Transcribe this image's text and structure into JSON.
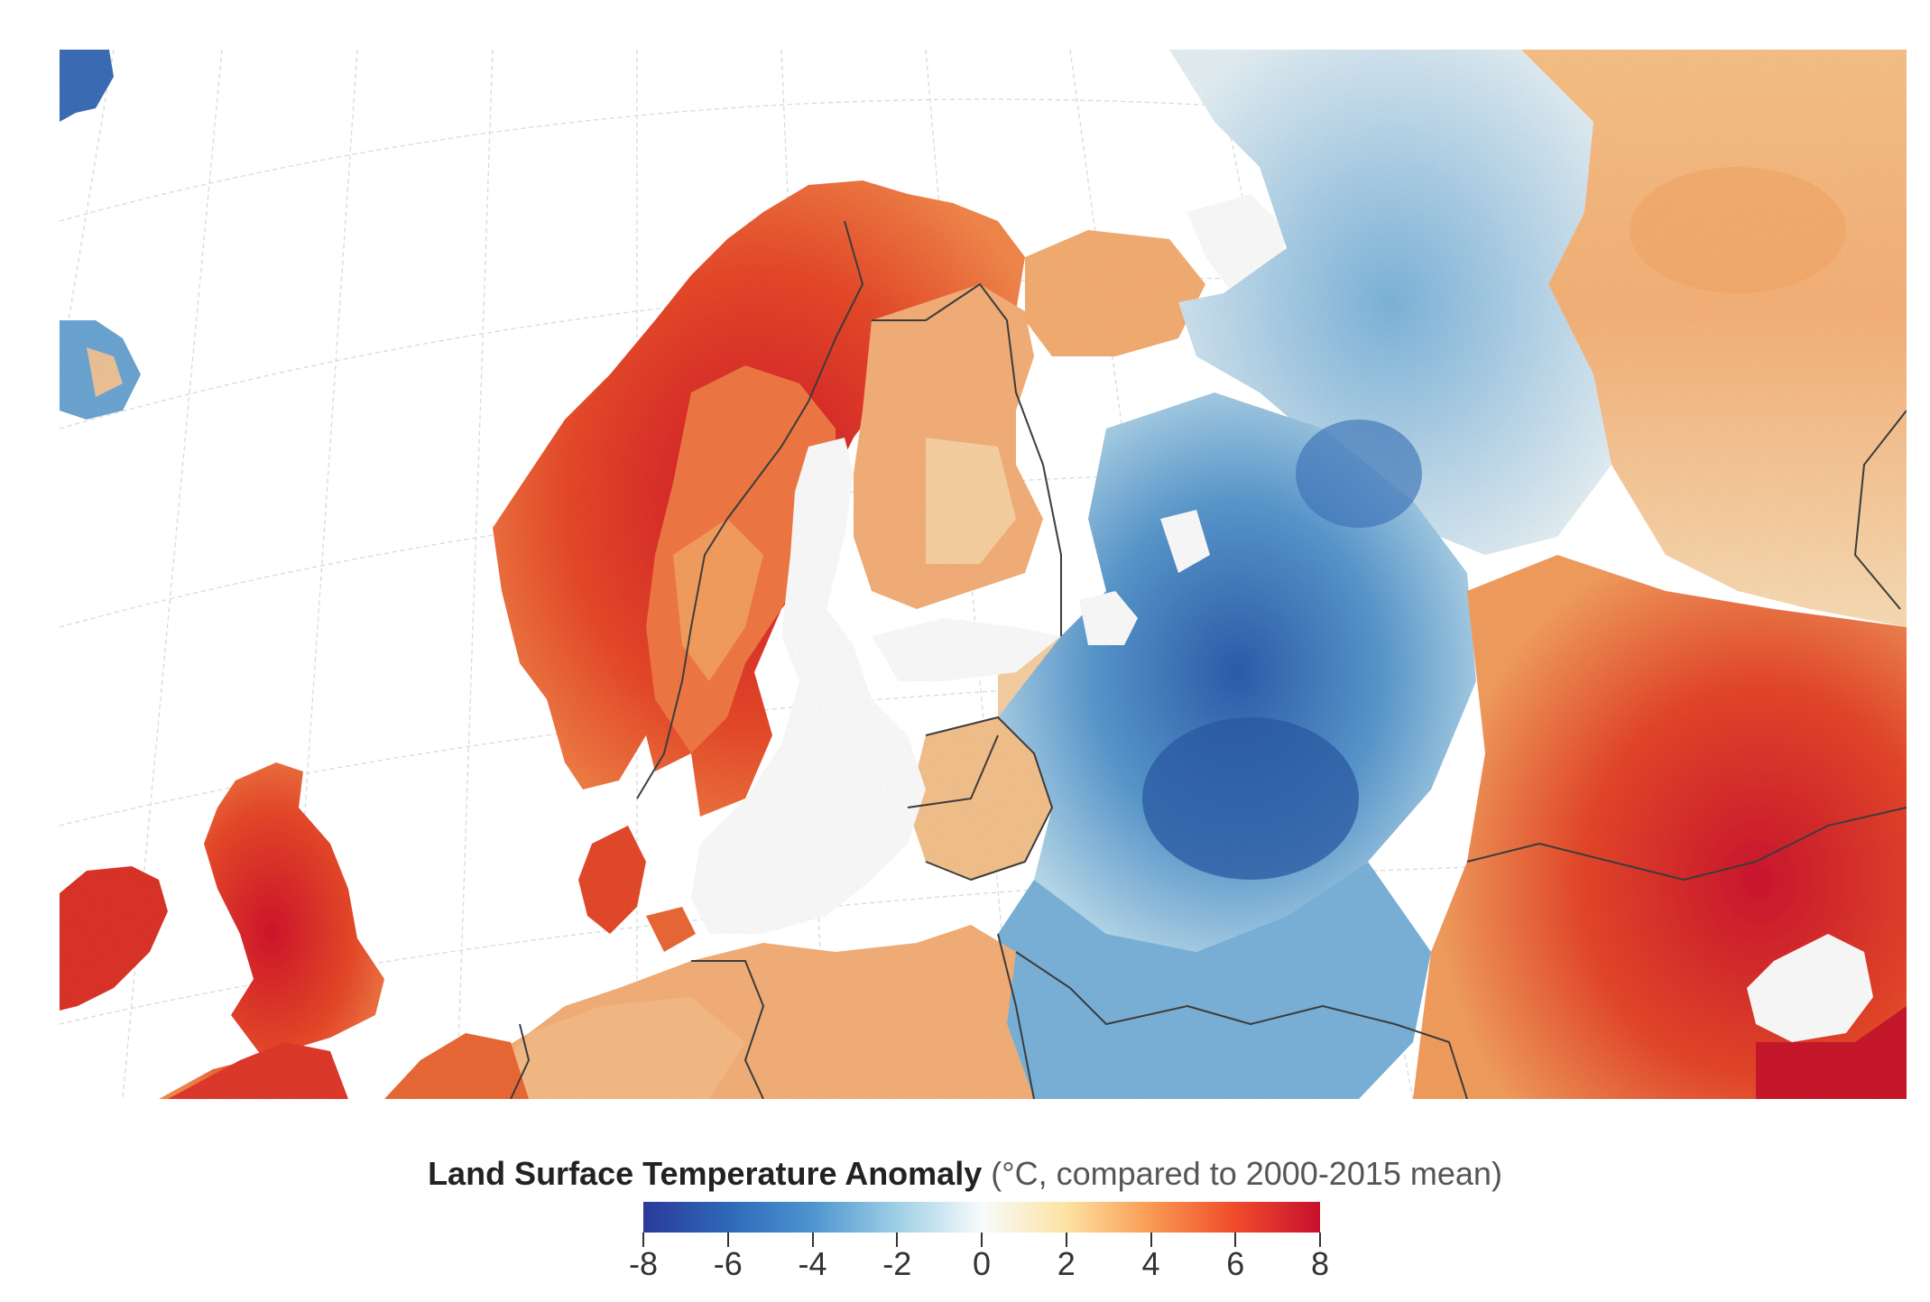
{
  "map": {
    "projection_grid": true,
    "countries_outlined": true,
    "colors": {
      "land_cold_strong": "#1f4fa3",
      "land_cold": "#5f9fd3",
      "land_neutral": "#f4f8f8",
      "land_warm": "#f8a868",
      "land_hot": "#e8452a",
      "land_very_hot": "#c8102e",
      "water": "#ffffff",
      "border": "#3a3a3a",
      "graticule": "#d8d8d8"
    }
  },
  "legend": {
    "title_bold": "Land Surface Temperature Anomaly",
    "title_rest": " (°C, compared to 2000-2015 mean)",
    "min": -8,
    "max": 8,
    "ticks": [
      "-8",
      "-6",
      "-4",
      "-2",
      "0",
      "2",
      "4",
      "6",
      "8"
    ],
    "tick_values": [
      -8,
      -6,
      -4,
      -2,
      0,
      2,
      4,
      6,
      8
    ]
  }
}
